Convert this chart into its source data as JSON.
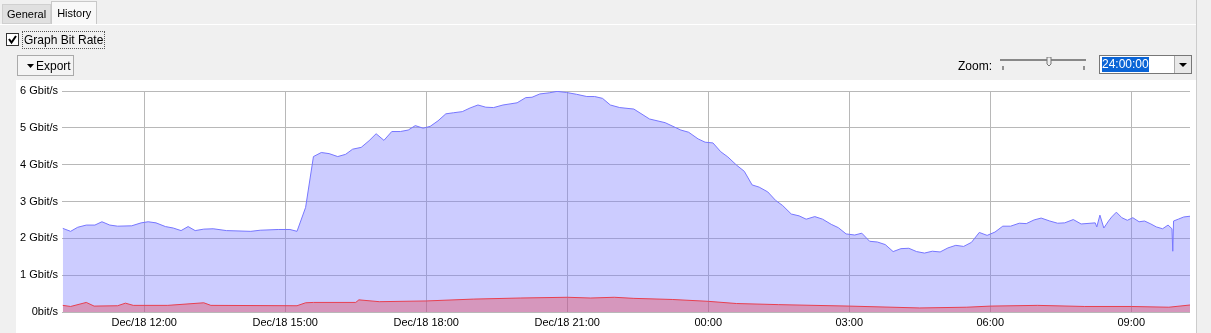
{
  "chart_data": {
    "type": "area",
    "annotations": [
      "General",
      "History",
      "Graph Bit Rate",
      "Export",
      "Zoom:",
      "24:00:00"
    ],
    "xlim": [
      "--12-18T10:15",
      "--12-19T10:15"
    ],
    "xticks": [
      {
        "value": "--12-18T12:00",
        "label": "Dec/18 12:00"
      },
      {
        "value": "--12-18T15:00",
        "label": "Dec/18 15:00"
      },
      {
        "value": "--12-18T18:00",
        "label": "Dec/18 18:00"
      },
      {
        "value": "--12-18T21:00",
        "label": "Dec/18 21:00"
      },
      {
        "value": "--12-19T00:00",
        "label": "00:00"
      },
      {
        "value": "--12-19T03:00",
        "label": "03:00"
      },
      {
        "value": "--12-19T06:00",
        "label": "06:00"
      },
      {
        "value": "--12-19T09:00",
        "label": "09:00"
      }
    ],
    "ylim": [
      0,
      6
    ],
    "yticks": [
      {
        "value": 0,
        "label": "0bit/s"
      },
      {
        "value": 1,
        "label": "1 Gbit/s"
      },
      {
        "value": 2,
        "label": "2 Gbit/s"
      },
      {
        "value": 3,
        "label": "3 Gbit/s"
      },
      {
        "value": 4,
        "label": "4 Gbit/s"
      },
      {
        "value": 5,
        "label": "5 Gbit/s"
      },
      {
        "value": 6,
        "label": "6 Gbit/s"
      }
    ],
    "grid": true,
    "series": [
      {
        "color": "#7777ff",
        "x": [
          "--12-18T10:16",
          "--12-18T10:26",
          "--12-18T10:35",
          "--12-18T10:46",
          "--12-18T10:57",
          "--12-18T11:06",
          "--12-18T11:16",
          "--12-18T11:26",
          "--12-18T11:44",
          "--12-18T11:56",
          "--12-18T12:05",
          "--12-18T12:15",
          "--12-18T12:27",
          "--12-18T12:37",
          "--12-18T12:47",
          "--12-18T12:56",
          "--12-18T13:05",
          "--12-18T13:16",
          "--12-18T13:28",
          "--12-18T13:45",
          "--12-18T14:16",
          "--12-18T14:28",
          "--12-18T14:51",
          "--12-18T15:06",
          "--12-18T15:15",
          "--12-18T15:26",
          "--12-18T15:36",
          "--12-18T15:46",
          "--12-18T15:56",
          "--12-18T16:07",
          "--12-18T16:17",
          "--12-18T16:26",
          "--12-18T16:37",
          "--12-18T16:47",
          "--12-18T16:56",
          "--12-18T17:06",
          "--12-18T17:16",
          "--12-18T17:27",
          "--12-18T17:37",
          "--12-18T17:46",
          "--12-18T17:56",
          "--12-18T18:05",
          "--12-18T18:15",
          "--12-18T18:25",
          "--12-18T18:35",
          "--12-18T18:46",
          "--12-18T18:56",
          "--12-18T19:06",
          "--12-18T19:16",
          "--12-18T19:26",
          "--12-18T19:38",
          "--12-18T19:47",
          "--12-18T19:56",
          "--12-18T20:07",
          "--12-18T20:15",
          "--12-18T20:25",
          "--12-18T20:37",
          "--12-18T20:47",
          "--12-18T20:59",
          "--12-18T21:12",
          "--12-18T21:25",
          "--12-18T21:35",
          "--12-18T21:45",
          "--12-18T21:55",
          "--12-18T22:07",
          "--12-18T22:25",
          "--12-18T22:45",
          "--12-18T23:05",
          "--12-18T23:25",
          "--12-18T23:35",
          "--12-18T23:47",
          "--12-18T23:56",
          "--12-19T00:06",
          "--12-19T00:16",
          "--12-19T00:25",
          "--12-19T00:36",
          "--12-19T00:46",
          "--12-19T00:56",
          "--12-19T01:05",
          "--12-19T01:16",
          "--12-19T01:26",
          "--12-19T01:35",
          "--12-19T01:46",
          "--12-19T01:56",
          "--12-19T02:05",
          "--12-19T02:16",
          "--12-19T02:26",
          "--12-19T02:37",
          "--12-19T02:46",
          "--12-19T02:56",
          "--12-19T03:07",
          "--12-19T03:16",
          "--12-19T03:26",
          "--12-19T03:36",
          "--12-19T03:46",
          "--12-19T03:56",
          "--12-19T04:06",
          "--12-19T04:16",
          "--12-19T04:26",
          "--12-19T04:36",
          "--12-19T04:46",
          "--12-19T04:56",
          "--12-19T05:06",
          "--12-19T05:16",
          "--12-19T05:26",
          "--12-19T05:36",
          "--12-19T05:46",
          "--12-19T05:56",
          "--12-19T06:06",
          "--12-19T06:16",
          "--12-19T06:26",
          "--12-19T06:37",
          "--12-19T06:46",
          "--12-19T06:56",
          "--12-19T07:05",
          "--12-19T07:16",
          "--12-19T07:26",
          "--12-19T07:35",
          "--12-19T07:46",
          "--12-19T07:56",
          "--12-19T08:14",
          "--12-19T08:16",
          "--12-19T08:20",
          "--12-19T08:25",
          "--12-19T08:31",
          "--12-19T08:35",
          "--12-19T08:41",
          "--12-19T08:48",
          "--12-19T08:55",
          "--12-19T09:02",
          "--12-19T09:10",
          "--12-19T09:17",
          "--12-19T09:25",
          "--12-19T09:32",
          "--12-19T09:40",
          "--12-19T09:47",
          "--12-19T09:52",
          "--12-19T09:53",
          "--12-19T09:54",
          "--12-19T10:00",
          "--12-19T10:07",
          "--12-19T10:15"
        ],
        "values": [
          2.27,
          2.19,
          2.3,
          2.36,
          2.36,
          2.45,
          2.36,
          2.33,
          2.34,
          2.42,
          2.45,
          2.42,
          2.32,
          2.28,
          2.21,
          2.32,
          2.21,
          2.25,
          2.26,
          2.21,
          2.19,
          2.22,
          2.24,
          2.24,
          2.19,
          2.84,
          4.22,
          4.33,
          4.3,
          4.22,
          4.28,
          4.42,
          4.47,
          4.65,
          4.84,
          4.66,
          4.9,
          4.9,
          4.94,
          5.06,
          4.99,
          5.04,
          5.19,
          5.38,
          5.41,
          5.44,
          5.54,
          5.62,
          5.56,
          5.55,
          5.62,
          5.65,
          5.68,
          5.82,
          5.83,
          5.92,
          5.95,
          5.99,
          5.96,
          5.91,
          5.85,
          5.85,
          5.8,
          5.62,
          5.55,
          5.51,
          5.24,
          5.14,
          4.94,
          4.88,
          4.7,
          4.61,
          4.59,
          4.35,
          4.21,
          3.99,
          3.82,
          3.45,
          3.39,
          3.26,
          3.03,
          2.89,
          2.66,
          2.61,
          2.52,
          2.59,
          2.52,
          2.38,
          2.29,
          2.12,
          2.09,
          2.14,
          1.92,
          1.9,
          1.83,
          1.64,
          1.72,
          1.73,
          1.64,
          1.6,
          1.65,
          1.63,
          1.74,
          1.81,
          1.78,
          1.89,
          2.16,
          2.08,
          2.17,
          2.33,
          2.33,
          2.41,
          2.4,
          2.5,
          2.55,
          2.47,
          2.41,
          2.42,
          2.51,
          2.39,
          2.42,
          2.31,
          2.63,
          2.28,
          2.47,
          2.58,
          2.71,
          2.56,
          2.49,
          2.56,
          2.45,
          2.47,
          2.39,
          2.31,
          2.26,
          2.36,
          2.26,
          1.65,
          2.47,
          2.52,
          2.58,
          2.6
        ]
      },
      {
        "color": "#e84050",
        "x": [
          "--12-18T10:16",
          "--12-18T10:26",
          "--12-18T10:46",
          "--12-18T10:56",
          "--12-18T11:26",
          "--12-18T11:36",
          "--12-18T11:46",
          "--12-18T12:30",
          "--12-18T13:16",
          "--12-18T13:25",
          "--12-18T15:15",
          "--12-18T15:26",
          "--12-18T15:36",
          "--12-18T16:30",
          "--12-18T16:34",
          "--12-18T17:00",
          "--12-18T18:00",
          "--12-18T19:00",
          "--12-18T20:00",
          "--12-18T21:00",
          "--12-18T21:30",
          "--12-18T22:00",
          "--12-18T22:25",
          "--12-18T23:14",
          "--12-19T00:00",
          "--12-19T00:36",
          "--12-19T01:30",
          "--12-19T03:00",
          "--12-19T04:30",
          "--12-19T05:30",
          "--12-19T06:00",
          "--12-19T07:00",
          "--12-19T08:00",
          "--12-19T09:00",
          "--12-19T09:48",
          "--12-19T10:15"
        ],
        "values": [
          0.18,
          0.15,
          0.26,
          0.16,
          0.17,
          0.24,
          0.18,
          0.18,
          0.25,
          0.18,
          0.17,
          0.25,
          0.26,
          0.26,
          0.33,
          0.28,
          0.3,
          0.35,
          0.38,
          0.4,
          0.38,
          0.4,
          0.37,
          0.34,
          0.29,
          0.23,
          0.2,
          0.16,
          0.11,
          0.13,
          0.16,
          0.18,
          0.15,
          0.15,
          0.13,
          0.19
        ]
      }
    ]
  }
}
